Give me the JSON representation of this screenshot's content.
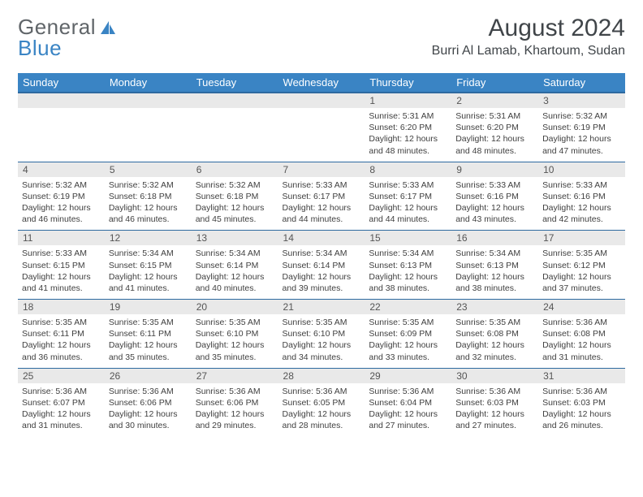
{
  "brand": {
    "part1": "General",
    "part2": "Blue"
  },
  "title": "August 2024",
  "location": "Burri Al Lamab, Khartoum, Sudan",
  "columns": [
    "Sunday",
    "Monday",
    "Tuesday",
    "Wednesday",
    "Thursday",
    "Friday",
    "Saturday"
  ],
  "colors": {
    "header_bg": "#3a84c4",
    "header_border": "#2e6aa0",
    "daynum_bg": "#e9e9e9",
    "text": "#404549",
    "logo_gray": "#606569",
    "logo_blue": "#3a84c4"
  },
  "weeks": [
    [
      {
        "n": "",
        "sr": "",
        "ss": "",
        "dl": ""
      },
      {
        "n": "",
        "sr": "",
        "ss": "",
        "dl": ""
      },
      {
        "n": "",
        "sr": "",
        "ss": "",
        "dl": ""
      },
      {
        "n": "",
        "sr": "",
        "ss": "",
        "dl": ""
      },
      {
        "n": "1",
        "sr": "5:31 AM",
        "ss": "6:20 PM",
        "dl": "12 hours and 48 minutes."
      },
      {
        "n": "2",
        "sr": "5:31 AM",
        "ss": "6:20 PM",
        "dl": "12 hours and 48 minutes."
      },
      {
        "n": "3",
        "sr": "5:32 AM",
        "ss": "6:19 PM",
        "dl": "12 hours and 47 minutes."
      }
    ],
    [
      {
        "n": "4",
        "sr": "5:32 AM",
        "ss": "6:19 PM",
        "dl": "12 hours and 46 minutes."
      },
      {
        "n": "5",
        "sr": "5:32 AM",
        "ss": "6:18 PM",
        "dl": "12 hours and 46 minutes."
      },
      {
        "n": "6",
        "sr": "5:32 AM",
        "ss": "6:18 PM",
        "dl": "12 hours and 45 minutes."
      },
      {
        "n": "7",
        "sr": "5:33 AM",
        "ss": "6:17 PM",
        "dl": "12 hours and 44 minutes."
      },
      {
        "n": "8",
        "sr": "5:33 AM",
        "ss": "6:17 PM",
        "dl": "12 hours and 44 minutes."
      },
      {
        "n": "9",
        "sr": "5:33 AM",
        "ss": "6:16 PM",
        "dl": "12 hours and 43 minutes."
      },
      {
        "n": "10",
        "sr": "5:33 AM",
        "ss": "6:16 PM",
        "dl": "12 hours and 42 minutes."
      }
    ],
    [
      {
        "n": "11",
        "sr": "5:33 AM",
        "ss": "6:15 PM",
        "dl": "12 hours and 41 minutes."
      },
      {
        "n": "12",
        "sr": "5:34 AM",
        "ss": "6:15 PM",
        "dl": "12 hours and 41 minutes."
      },
      {
        "n": "13",
        "sr": "5:34 AM",
        "ss": "6:14 PM",
        "dl": "12 hours and 40 minutes."
      },
      {
        "n": "14",
        "sr": "5:34 AM",
        "ss": "6:14 PM",
        "dl": "12 hours and 39 minutes."
      },
      {
        "n": "15",
        "sr": "5:34 AM",
        "ss": "6:13 PM",
        "dl": "12 hours and 38 minutes."
      },
      {
        "n": "16",
        "sr": "5:34 AM",
        "ss": "6:13 PM",
        "dl": "12 hours and 38 minutes."
      },
      {
        "n": "17",
        "sr": "5:35 AM",
        "ss": "6:12 PM",
        "dl": "12 hours and 37 minutes."
      }
    ],
    [
      {
        "n": "18",
        "sr": "5:35 AM",
        "ss": "6:11 PM",
        "dl": "12 hours and 36 minutes."
      },
      {
        "n": "19",
        "sr": "5:35 AM",
        "ss": "6:11 PM",
        "dl": "12 hours and 35 minutes."
      },
      {
        "n": "20",
        "sr": "5:35 AM",
        "ss": "6:10 PM",
        "dl": "12 hours and 35 minutes."
      },
      {
        "n": "21",
        "sr": "5:35 AM",
        "ss": "6:10 PM",
        "dl": "12 hours and 34 minutes."
      },
      {
        "n": "22",
        "sr": "5:35 AM",
        "ss": "6:09 PM",
        "dl": "12 hours and 33 minutes."
      },
      {
        "n": "23",
        "sr": "5:35 AM",
        "ss": "6:08 PM",
        "dl": "12 hours and 32 minutes."
      },
      {
        "n": "24",
        "sr": "5:36 AM",
        "ss": "6:08 PM",
        "dl": "12 hours and 31 minutes."
      }
    ],
    [
      {
        "n": "25",
        "sr": "5:36 AM",
        "ss": "6:07 PM",
        "dl": "12 hours and 31 minutes."
      },
      {
        "n": "26",
        "sr": "5:36 AM",
        "ss": "6:06 PM",
        "dl": "12 hours and 30 minutes."
      },
      {
        "n": "27",
        "sr": "5:36 AM",
        "ss": "6:06 PM",
        "dl": "12 hours and 29 minutes."
      },
      {
        "n": "28",
        "sr": "5:36 AM",
        "ss": "6:05 PM",
        "dl": "12 hours and 28 minutes."
      },
      {
        "n": "29",
        "sr": "5:36 AM",
        "ss": "6:04 PM",
        "dl": "12 hours and 27 minutes."
      },
      {
        "n": "30",
        "sr": "5:36 AM",
        "ss": "6:03 PM",
        "dl": "12 hours and 27 minutes."
      },
      {
        "n": "31",
        "sr": "5:36 AM",
        "ss": "6:03 PM",
        "dl": "12 hours and 26 minutes."
      }
    ]
  ],
  "labels": {
    "sunrise": "Sunrise:",
    "sunset": "Sunset:",
    "daylight": "Daylight:"
  }
}
